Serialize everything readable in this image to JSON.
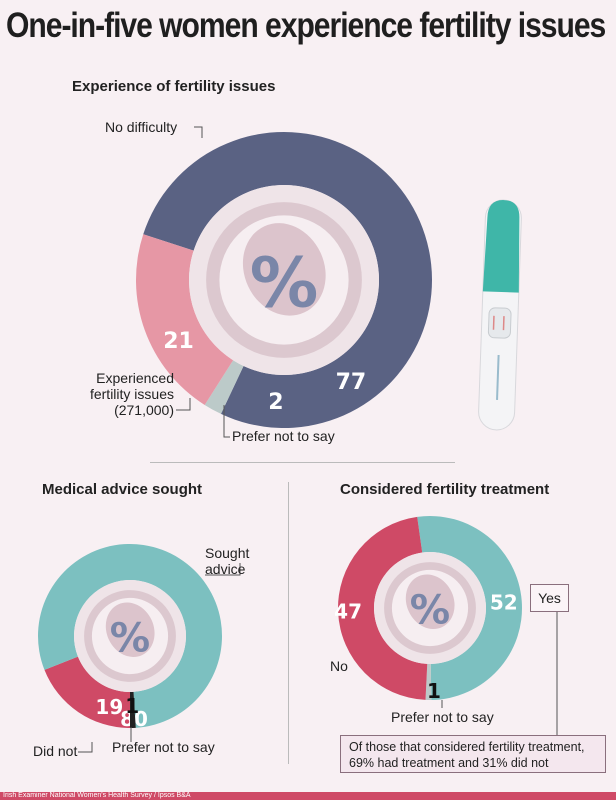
{
  "title": "One-in-five women experience fertility issues",
  "source": "Irish Examiner National Women's Health Survey / Ipsos B&A",
  "center_symbol": "%",
  "colors": {
    "background": "#f8f0f3",
    "navy": "#5a6283",
    "pink": "#e697a5",
    "grey": "#bccac9",
    "teal": "#7cc0c0",
    "red": "#cf4a66",
    "dark": "#222222",
    "footer": "#cf4a66"
  },
  "chart_data": [
    {
      "type": "pie",
      "title": "Experience of fertility issues",
      "unit": "%",
      "slices": [
        {
          "label": "No difficulty",
          "value": 77,
          "color": "#5a6283"
        },
        {
          "label": "Prefer not to say",
          "value": 2,
          "color": "#bccac9"
        },
        {
          "label": "Experienced fertility issues (271,000)",
          "value": 21,
          "color": "#e697a5"
        }
      ]
    },
    {
      "type": "pie",
      "title": "Medical advice sought",
      "unit": "%",
      "slices": [
        {
          "label": "Did not",
          "value": 19,
          "color": "#cf4a66"
        },
        {
          "label": "Sought advice",
          "value": 80,
          "color": "#7cc0c0"
        },
        {
          "label": "Prefer not to say",
          "value": 1,
          "color": "#222222"
        }
      ]
    },
    {
      "type": "pie",
      "title": "Considered fertility treatment",
      "unit": "%",
      "slices": [
        {
          "label": "Yes",
          "value": 52,
          "color": "#7cc0c0"
        },
        {
          "label": "Prefer not to say",
          "value": 1,
          "color": "#bccac9"
        },
        {
          "label": "No",
          "value": 47,
          "color": "#cf4a66"
        }
      ],
      "note": "Of those that considered fertility treatment, 69% had treatment and 31% did not"
    }
  ],
  "labels": {
    "no_difficulty": "No difficulty",
    "experienced_1": "Experienced",
    "experienced_2": "fertility issues",
    "experienced_3": "(271,000)",
    "prefer": "Prefer not to say",
    "sought_1": "Sought",
    "sought_2": "advice",
    "did_not": "Did not",
    "no": "No",
    "yes": "Yes",
    "v77": "77",
    "v21": "21",
    "v2": "2",
    "v80": "80",
    "v19": "19",
    "v1a": "1",
    "v52": "52",
    "v47": "47",
    "v1b": "1"
  }
}
